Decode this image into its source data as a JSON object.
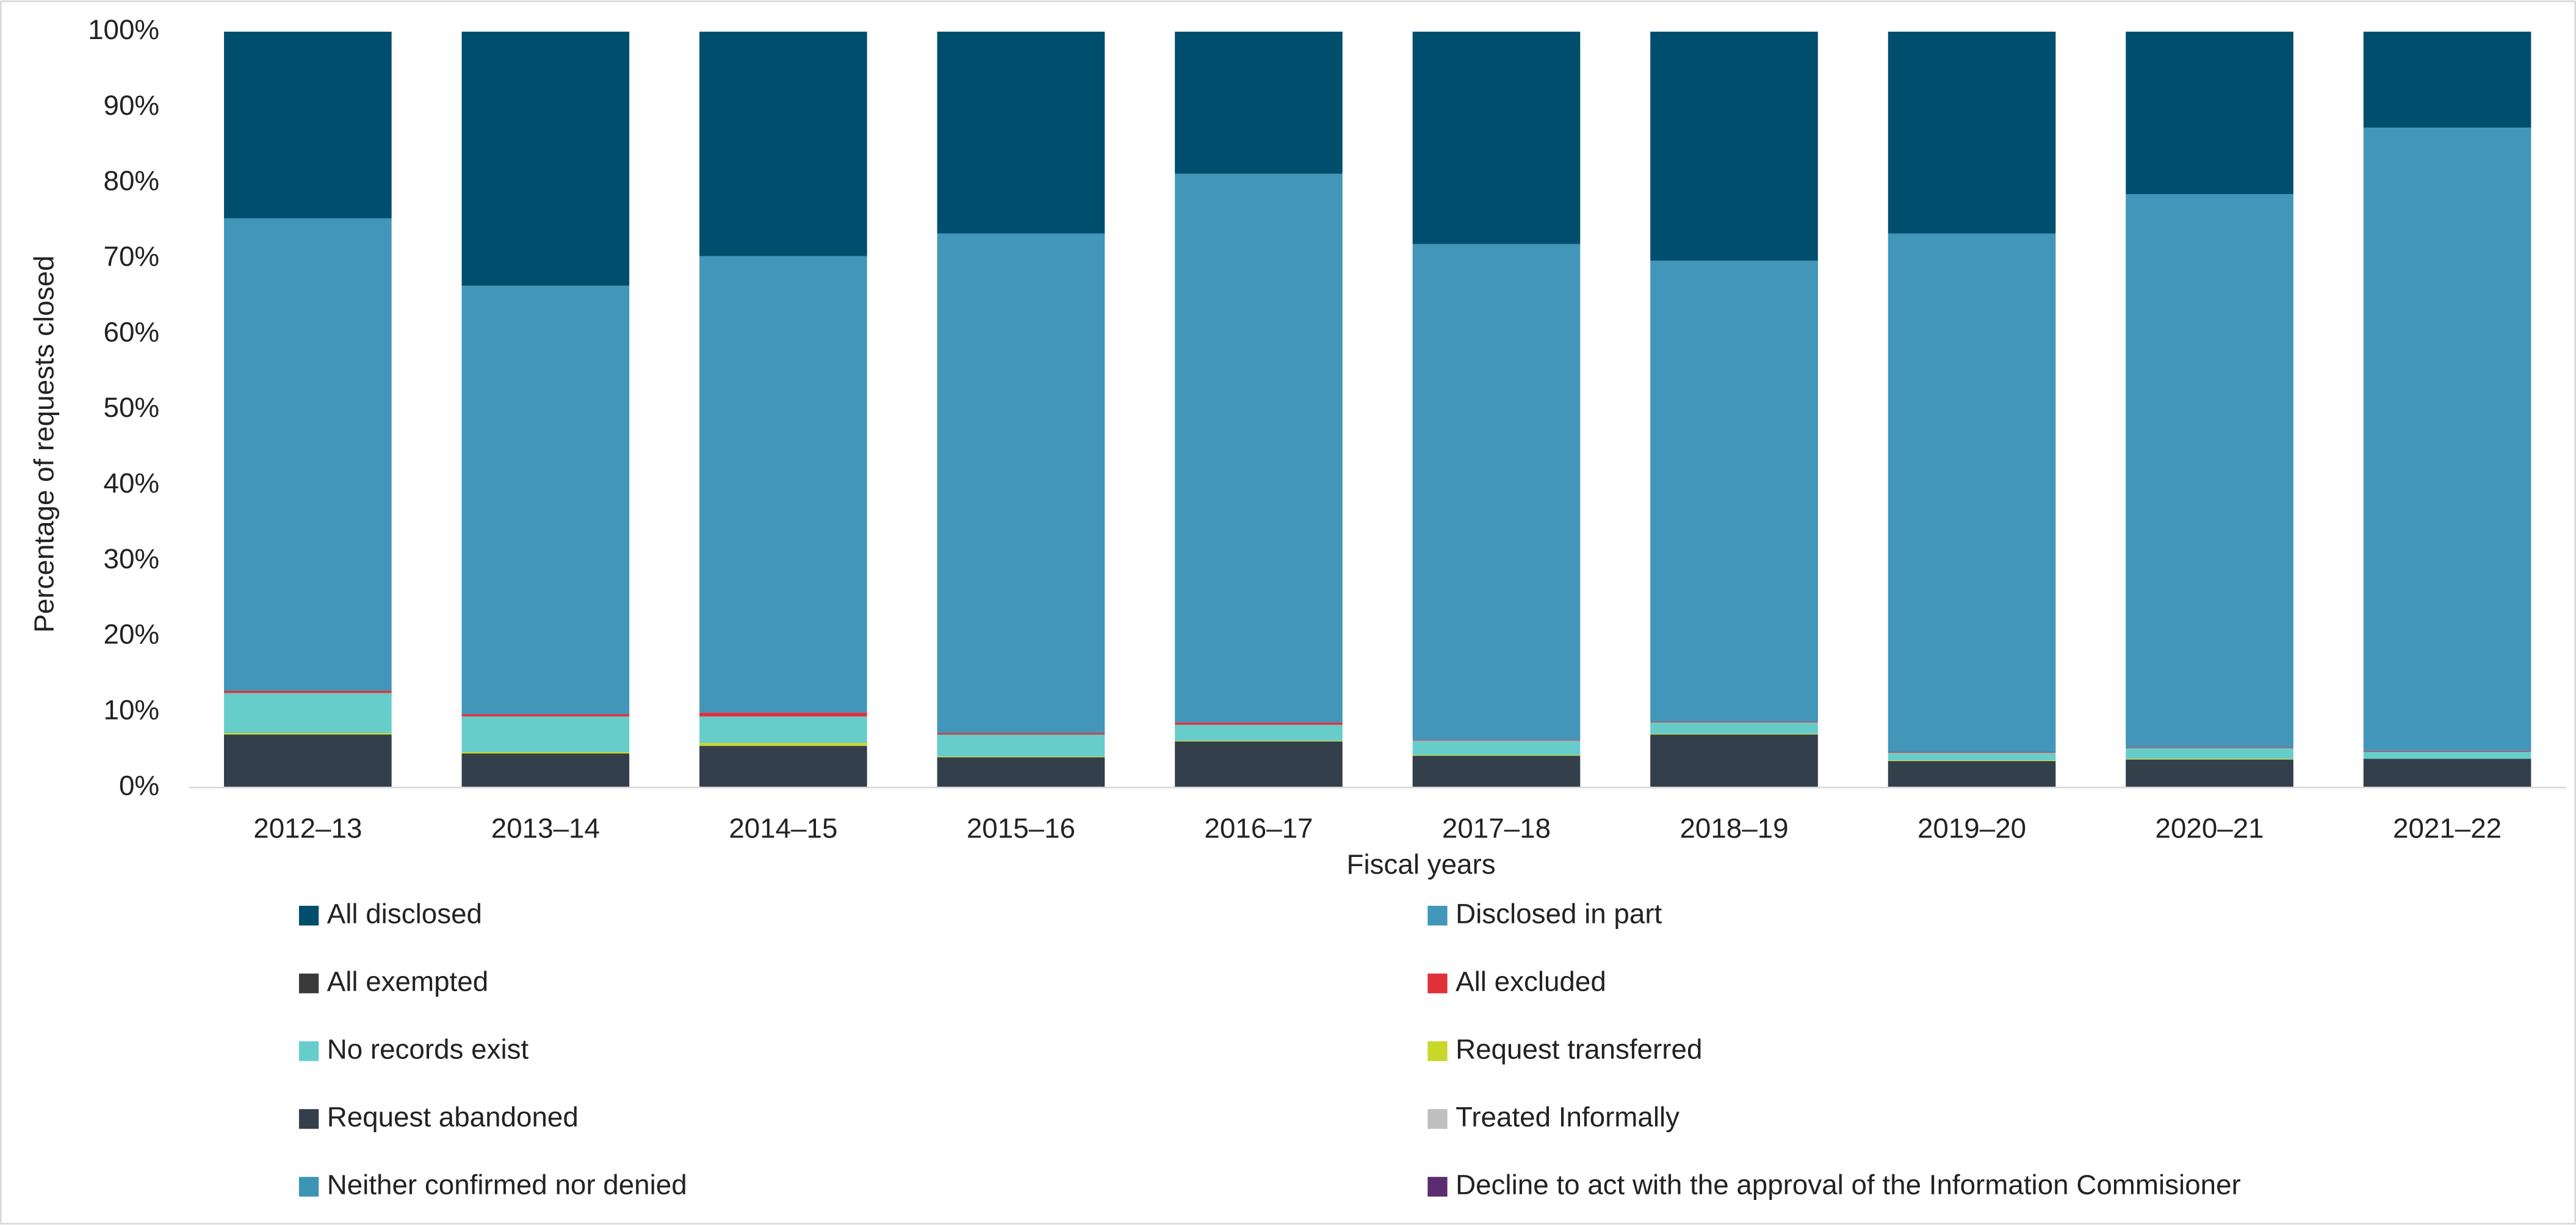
{
  "chart_data": {
    "type": "stacked_bar_percent",
    "x_label": "Fiscal years",
    "y_label": "Percentage of requests closed",
    "categories": [
      "2012–13",
      "2013–14",
      "2014–15",
      "2015–16",
      "2016–17",
      "2017–18",
      "2018–19",
      "2019–20",
      "2020–21",
      "2021–22"
    ],
    "series": [
      {
        "name": "All disclosed",
        "color": "#004e6e",
        "values": [
          24.7,
          33.6,
          29.7,
          26.7,
          18.8,
          28.1,
          30.3,
          26.7,
          21.5,
          12.7
        ]
      },
      {
        "name": "Disclosed in part",
        "color": "#4196b9",
        "values": [
          62.5,
          56.7,
          60.4,
          66.1,
          72.6,
          65.6,
          61,
          68.6,
          73.2,
          82.5
        ]
      },
      {
        "name": "All exempted",
        "color": "#3a3a3a",
        "values": [
          0,
          0,
          0,
          0,
          0,
          0,
          0,
          0,
          0,
          0
        ]
      },
      {
        "name": "All excluded",
        "color": "#e0303a",
        "values": [
          0.3,
          0.3,
          0.5,
          0.2,
          0.3,
          0.1,
          0.1,
          0.1,
          0.1,
          0.1
        ]
      },
      {
        "name": "No records exist",
        "color": "#66cdcb",
        "values": [
          5.3,
          4.7,
          3.5,
          2.9,
          2.1,
          1.9,
          1.5,
          1,
          1.4,
          0.9
        ]
      },
      {
        "name": "Request transferred",
        "color": "#c8d72a",
        "values": [
          0.2,
          0.2,
          0.4,
          0.1,
          0.1,
          0.1,
          0.1,
          0.1,
          0.1,
          0
        ]
      },
      {
        "name": "Request abandoned",
        "color": "#333f4b",
        "values": [
          7,
          4.5,
          5.5,
          4,
          6.1,
          4.2,
          7,
          3.5,
          3.7,
          3.8
        ]
      },
      {
        "name": "Treated Informally",
        "color": "#bfbfbf",
        "values": [
          0,
          0,
          0,
          0,
          0,
          0,
          0,
          0,
          0,
          0
        ]
      },
      {
        "name": "Neither confirmed nor denied",
        "color": "#3c94b6",
        "values": [
          0,
          0,
          0,
          0,
          0,
          0,
          0,
          0,
          0,
          0
        ]
      },
      {
        "name": "Decline to act with the approval of the Information Commisioner",
        "color": "#5b2c6f",
        "values": [
          0,
          0,
          0,
          0,
          0,
          0,
          0,
          0,
          0,
          0
        ]
      }
    ],
    "ylim": [
      0,
      100
    ],
    "yticks": [
      {
        "value": 0,
        "label": "0%"
      },
      {
        "value": 10,
        "label": "10%"
      },
      {
        "value": 20,
        "label": "20%"
      },
      {
        "value": 30,
        "label": "30%"
      },
      {
        "value": 40,
        "label": "40%"
      },
      {
        "value": 50,
        "label": "50%"
      },
      {
        "value": 60,
        "label": "60%"
      },
      {
        "value": 70,
        "label": "70%"
      },
      {
        "value": 80,
        "label": "80%"
      },
      {
        "value": 90,
        "label": "90%"
      },
      {
        "value": 100,
        "label": "100%"
      }
    ],
    "grid": false,
    "legend": "bottom"
  }
}
